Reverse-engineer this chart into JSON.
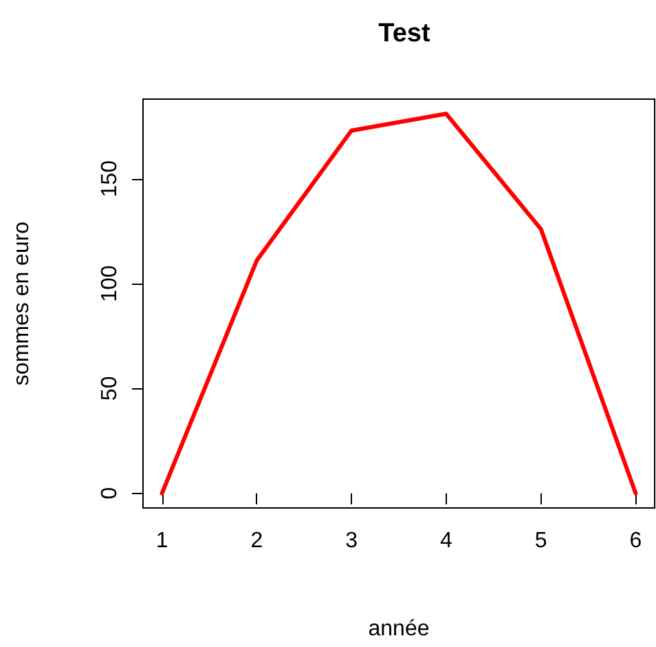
{
  "chart_data": {
    "type": "line",
    "title": "Test",
    "xlabel": "année",
    "ylabel": "sommes en euro",
    "x": [
      1,
      2,
      3,
      4,
      5,
      6
    ],
    "series": [
      {
        "color": "#ff0000",
        "values": [
          0,
          111,
          173,
          181,
          126,
          0
        ]
      }
    ],
    "xlim": [
      0.8,
      6.2
    ],
    "xticks": [
      1,
      2,
      3,
      4,
      5,
      6
    ],
    "ylim": [
      -7,
      188
    ],
    "yticks": [
      0,
      50,
      100,
      150
    ],
    "grid": false,
    "marker": "none",
    "line_style": "solid"
  }
}
